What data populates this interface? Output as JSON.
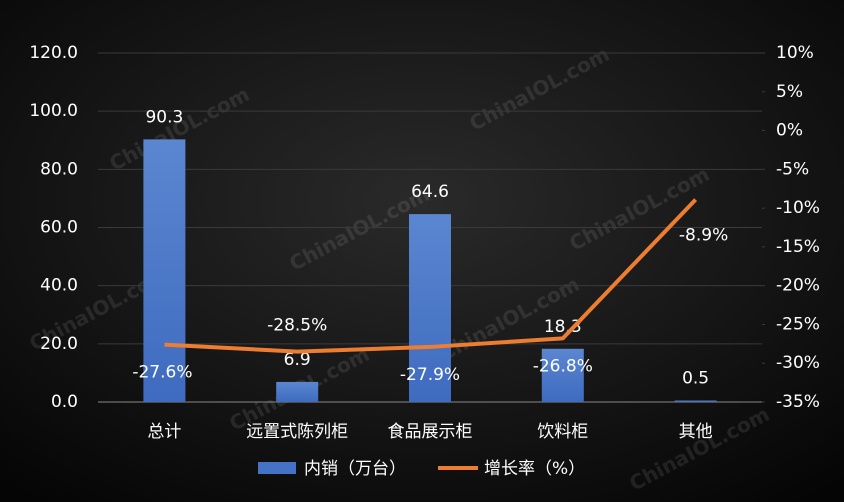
{
  "chart_data": {
    "type": "bar-line",
    "categories": [
      "总计",
      "远置式陈列柜",
      "食品展示柜",
      "饮料柜",
      "其他"
    ],
    "series": [
      {
        "name": "内销（万台）",
        "type": "bar",
        "color": "#4472c4",
        "values": [
          90.3,
          6.9,
          64.6,
          18.3,
          0.5
        ]
      },
      {
        "name": "增长率（%）",
        "type": "line",
        "axis": "y2",
        "color": "#ed7d31",
        "values": [
          -27.6,
          -28.5,
          -27.9,
          -26.8,
          -8.9
        ],
        "value_labels": [
          "-27.6%",
          "-28.5%",
          "-27.9%",
          "-26.8%",
          "-8.9%"
        ]
      }
    ],
    "ylim": [
      0,
      120
    ],
    "yticks": [
      {
        "value": 0,
        "label": "0.0"
      },
      {
        "value": 20,
        "label": "20.0"
      },
      {
        "value": 40,
        "label": "40.0"
      },
      {
        "value": 60,
        "label": "60.0"
      },
      {
        "value": 80,
        "label": "80.0"
      },
      {
        "value": 100,
        "label": "100.0"
      },
      {
        "value": 120,
        "label": "120.0"
      }
    ],
    "y2lim": [
      -35,
      10
    ],
    "y2ticks": [
      {
        "value": -35,
        "label": "-35%"
      },
      {
        "value": -30,
        "label": "-30%"
      },
      {
        "value": -25,
        "label": "-25%"
      },
      {
        "value": -20,
        "label": "-20%"
      },
      {
        "value": -15,
        "label": "-15%"
      },
      {
        "value": -10,
        "label": "-10%"
      },
      {
        "value": -5,
        "label": "-5%"
      },
      {
        "value": 0,
        "label": "0%"
      },
      {
        "value": 5,
        "label": "5%"
      },
      {
        "value": 10,
        "label": "10%"
      }
    ],
    "grid": true,
    "legend": "bottom",
    "watermark": "ChinaIOL.com"
  }
}
